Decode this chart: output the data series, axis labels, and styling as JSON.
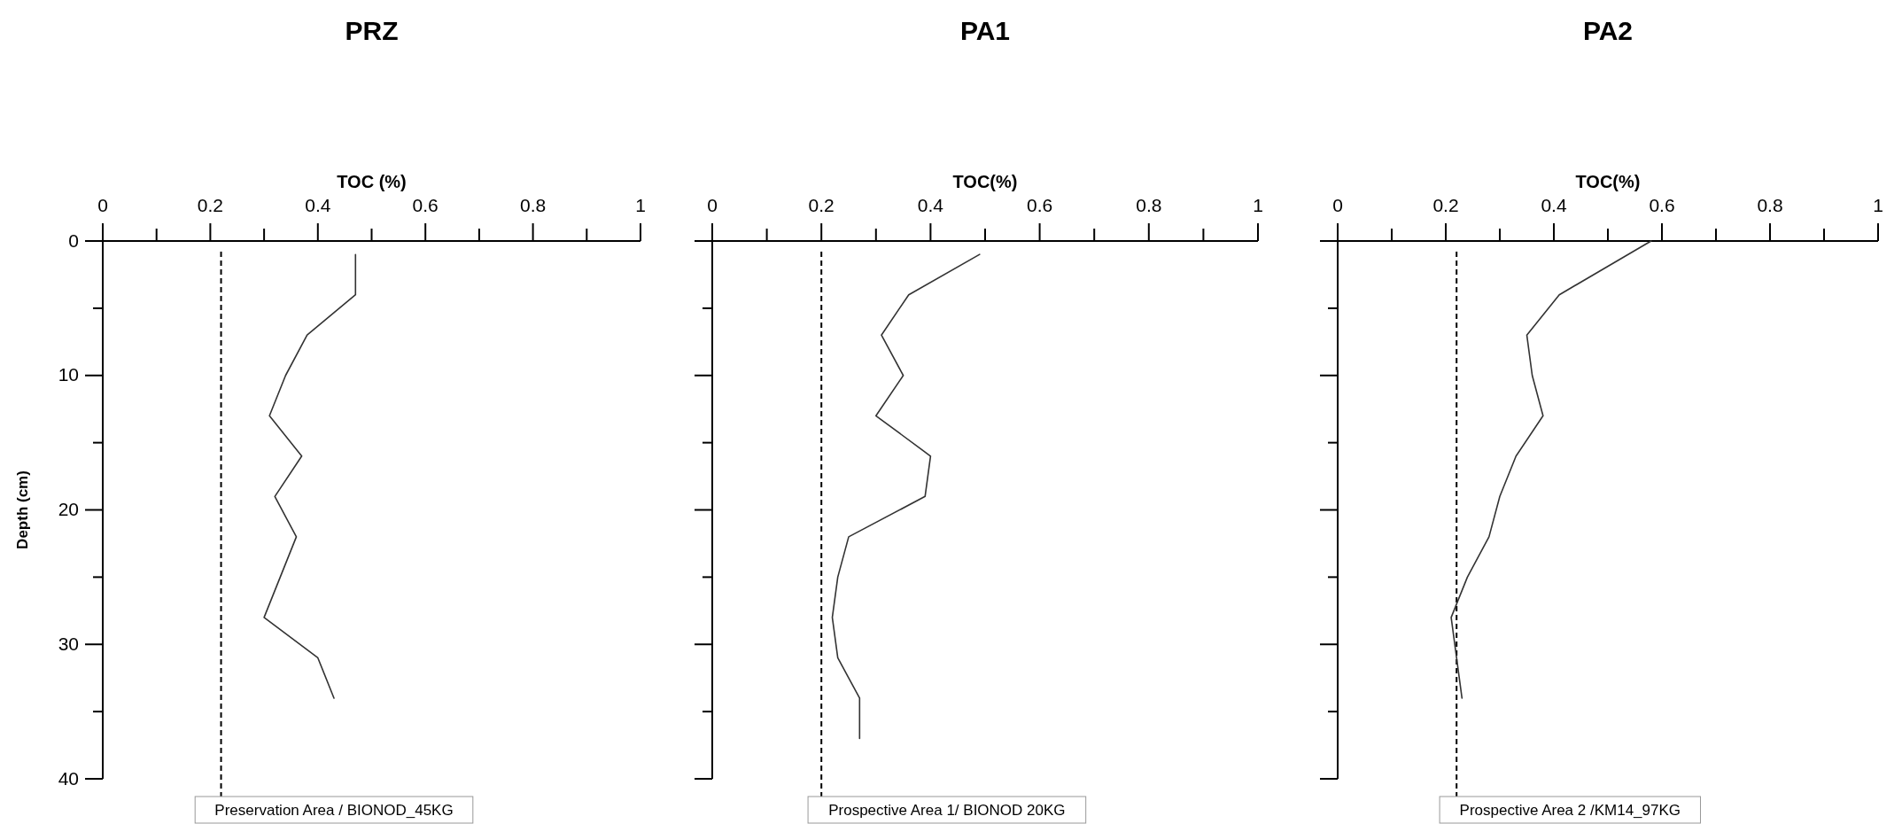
{
  "chart_data": [
    {
      "type": "line",
      "title": "PRZ",
      "xlabel": "TOC (%)",
      "ylabel": "Depth (cm)",
      "xlim": [
        0,
        1
      ],
      "xticks": [
        0,
        {
          "value": 0.1,
          "label": null
        },
        0.2,
        {
          "value": 0.3,
          "label": null
        },
        0.4,
        {
          "value": 0.5,
          "label": null
        },
        0.6,
        {
          "value": 0.7,
          "label": null
        },
        0.8,
        {
          "value": 0.9,
          "label": null
        },
        1
      ],
      "ylim": [
        40,
        0
      ],
      "yticks": [
        0,
        {
          "value": 5,
          "label": null
        },
        10,
        {
          "value": 15,
          "label": null
        },
        20,
        {
          "value": 25,
          "label": null
        },
        30,
        {
          "value": 35,
          "label": null
        },
        40
      ],
      "series": [
        {
          "color": "#333333",
          "x": [
            0.47,
            0.47,
            0.38,
            0.34,
            0.31,
            0.37,
            0.32,
            0.36,
            0.3,
            0.4,
            0.43
          ],
          "values": [
            1,
            4,
            7,
            10,
            13,
            16,
            19,
            22,
            28,
            31,
            34
          ]
        }
      ],
      "ref_lines": [
        {
          "axis": "x",
          "value": 0.22,
          "color": "#000000",
          "line_style": "dashed"
        }
      ],
      "annotations": [
        "Preservation Area / BIONOD_45KG"
      ]
    },
    {
      "type": "line",
      "title": "PA1",
      "xlabel": "TOC(%)",
      "xlim": [
        0,
        1
      ],
      "xticks": [
        0,
        {
          "value": 0.1,
          "label": null
        },
        0.2,
        {
          "value": 0.3,
          "label": null
        },
        0.4,
        {
          "value": 0.5,
          "label": null
        },
        0.6,
        {
          "value": 0.7,
          "label": null
        },
        0.8,
        {
          "value": 0.9,
          "label": null
        },
        1
      ],
      "ylim": [
        40,
        0
      ],
      "yticks": [
        0,
        {
          "value": 5,
          "label": null
        },
        10,
        {
          "value": 15,
          "label": null
        },
        20,
        {
          "value": 25,
          "label": null
        },
        30,
        {
          "value": 35,
          "label": null
        },
        40
      ],
      "tick_labels": "x",
      "series": [
        {
          "color": "#333333",
          "x": [
            0.49,
            0.36,
            0.31,
            0.35,
            0.3,
            0.4,
            0.39,
            0.25,
            0.23,
            0.22,
            0.23,
            0.27,
            0.27
          ],
          "values": [
            1,
            4,
            7,
            10,
            13,
            16,
            19,
            22,
            25,
            28,
            31,
            34,
            37
          ]
        }
      ],
      "ref_lines": [
        {
          "axis": "x",
          "value": 0.2,
          "color": "#000000",
          "line_style": "dashed"
        }
      ],
      "annotations": [
        "Prospective Area 1/ BIONOD 20KG"
      ]
    },
    {
      "type": "line",
      "title": "PA2",
      "xlabel": "TOC(%)",
      "xlim": [
        0,
        1
      ],
      "xticks": [
        0,
        {
          "value": 0.1,
          "label": null
        },
        0.2,
        {
          "value": 0.3,
          "label": null
        },
        0.4,
        {
          "value": 0.5,
          "label": null
        },
        0.6,
        {
          "value": 0.7,
          "label": null
        },
        0.8,
        {
          "value": 0.9,
          "label": null
        },
        1
      ],
      "ylim": [
        40,
        0
      ],
      "yticks": [
        0,
        {
          "value": 5,
          "label": null
        },
        10,
        {
          "value": 15,
          "label": null
        },
        20,
        {
          "value": 25,
          "label": null
        },
        30,
        {
          "value": 35,
          "label": null
        },
        40
      ],
      "tick_labels": "x",
      "series": [
        {
          "color": "#333333",
          "x": [
            0.58,
            0.41,
            0.35,
            0.36,
            0.38,
            0.33,
            0.3,
            0.28,
            0.24,
            0.21,
            0.23
          ],
          "values": [
            0,
            4,
            7,
            10,
            13,
            16,
            19,
            22,
            25,
            28,
            34
          ]
        }
      ],
      "ref_lines": [
        {
          "axis": "x",
          "value": 0.22,
          "color": "#000000",
          "line_style": "dashed"
        }
      ],
      "annotations": [
        "Prospective Area 2 /KM14_97KG"
      ]
    }
  ]
}
